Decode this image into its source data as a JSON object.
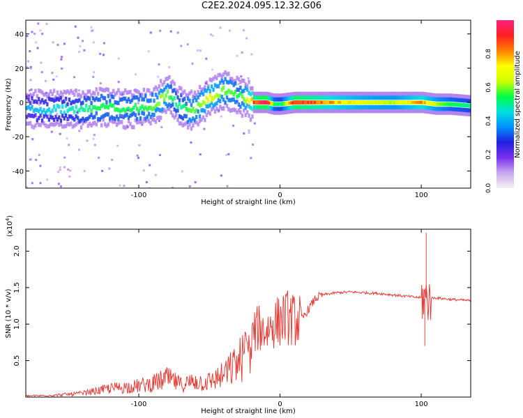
{
  "page": {
    "title": "C2E2.2024.095.12.32.G06"
  },
  "colors": {
    "snr_line": "#e8302a",
    "axis": "#000000",
    "colorbar_stops": [
      "#f2f2f2",
      "#c9a8f0",
      "#7b2ff0",
      "#1f1fe0",
      "#0090ff",
      "#00e0e0",
      "#00ff40",
      "#d0ff00",
      "#ffff00",
      "#ff8000",
      "#ff2020",
      "#ff2080"
    ]
  },
  "chart_data": [
    {
      "id": "spectrogram",
      "type": "heatmap",
      "title": "C2E2.2024.095.12.32.G06",
      "xlabel": "Height of straight line (km)",
      "ylabel": "Frequency (Hz)",
      "xlim": [
        -180,
        135
      ],
      "ylim": [
        -50,
        48
      ],
      "xticks": [
        {
          "value": -100,
          "label": "-100"
        },
        {
          "value": 0,
          "label": "0"
        },
        {
          "value": 100,
          "label": "100"
        }
      ],
      "yticks": [
        {
          "value": -40,
          "label": "-40"
        },
        {
          "value": -20,
          "label": "-20"
        },
        {
          "value": 0,
          "label": "0"
        },
        {
          "value": 20,
          "label": "20"
        },
        {
          "value": 40,
          "label": "40"
        }
      ],
      "colorbar": {
        "label": "Normalized spectral amplitude",
        "range": [
          0,
          1
        ],
        "ticks": [
          {
            "value": 0.0,
            "label": "0.0"
          },
          {
            "value": 0.2,
            "label": "0.2"
          },
          {
            "value": 0.4,
            "label": "0.4"
          },
          {
            "value": 0.6,
            "label": "0.6"
          },
          {
            "value": 0.8,
            "label": "0.8"
          }
        ]
      },
      "ridge": {
        "x": [
          -180,
          -165,
          -150,
          -140,
          -130,
          -120,
          -110,
          -100,
          -90,
          -85,
          -80,
          -75,
          -70,
          -65,
          -60,
          -55,
          -50,
          -45,
          -40,
          -35,
          -30,
          -25,
          -20,
          -15,
          -10,
          -5,
          0,
          10,
          20,
          40,
          60,
          80,
          100,
          110,
          120,
          135
        ],
        "y": [
          -4,
          -4,
          -4,
          -4,
          -3,
          -3,
          -4,
          -3,
          -2,
          2,
          5,
          0,
          -3,
          -5,
          -3,
          0,
          3,
          5,
          7,
          5,
          4,
          2,
          0,
          0,
          0,
          -1,
          -1,
          0,
          0,
          0,
          0,
          0,
          0,
          -1,
          -1,
          -2
        ],
        "amplitude": [
          0.25,
          0.3,
          0.35,
          0.4,
          0.45,
          0.45,
          0.45,
          0.45,
          0.5,
          0.55,
          0.5,
          0.4,
          0.4,
          0.5,
          0.5,
          0.55,
          0.6,
          0.55,
          0.5,
          0.5,
          0.45,
          0.55,
          0.8,
          0.9,
          0.95,
          0.45,
          0.4,
          0.9,
          0.85,
          0.7,
          0.6,
          0.55,
          0.75,
          0.55,
          0.45,
          0.4
        ]
      }
    },
    {
      "id": "snr",
      "type": "line",
      "title": "",
      "xlabel": "Height of straight line (km)",
      "ylabel": "SNR (10 * v/v)",
      "yscale_label": "(x10",
      "yscale_exp": "4",
      "yscale_close": ")",
      "xlim": [
        -180,
        135
      ],
      "ylim": [
        0,
        23000
      ],
      "xticks": [
        {
          "value": -100,
          "label": "-100"
        },
        {
          "value": 0,
          "label": "0"
        },
        {
          "value": 100,
          "label": "100"
        }
      ],
      "yticks": [
        {
          "value": 5000,
          "label": "0.5"
        },
        {
          "value": 10000,
          "label": "1.0"
        },
        {
          "value": 15000,
          "label": "1.5"
        },
        {
          "value": 20000,
          "label": "2.0"
        }
      ],
      "series": [
        {
          "name": "SNR",
          "x": [
            -180,
            -160,
            -140,
            -130,
            -120,
            -110,
            -100,
            -90,
            -85,
            -80,
            -75,
            -70,
            -65,
            -60,
            -55,
            -50,
            -45,
            -40,
            -35,
            -30,
            -25,
            -20,
            -15,
            -10,
            -5,
            0,
            5,
            10,
            15,
            20,
            25,
            30,
            40,
            50,
            60,
            70,
            80,
            90,
            100,
            105,
            110,
            120,
            135
          ],
          "y": [
            200,
            300,
            600,
            1000,
            1400,
            1600,
            1800,
            2200,
            2600,
            3000,
            2500,
            2000,
            2300,
            2600,
            2400,
            2500,
            3000,
            3500,
            4500,
            5500,
            7000,
            8500,
            9500,
            9000,
            10000,
            10500,
            11000,
            10500,
            10500,
            12000,
            13500,
            14000,
            14300,
            14400,
            14300,
            14200,
            14000,
            13800,
            13600,
            13500,
            13600,
            13400,
            13200
          ]
        }
      ],
      "annotations": [
        {
          "x": 103.5,
          "y": 22500,
          "note": "spike"
        },
        {
          "x": 102.5,
          "y": 7000,
          "note": "dip"
        }
      ]
    }
  ]
}
